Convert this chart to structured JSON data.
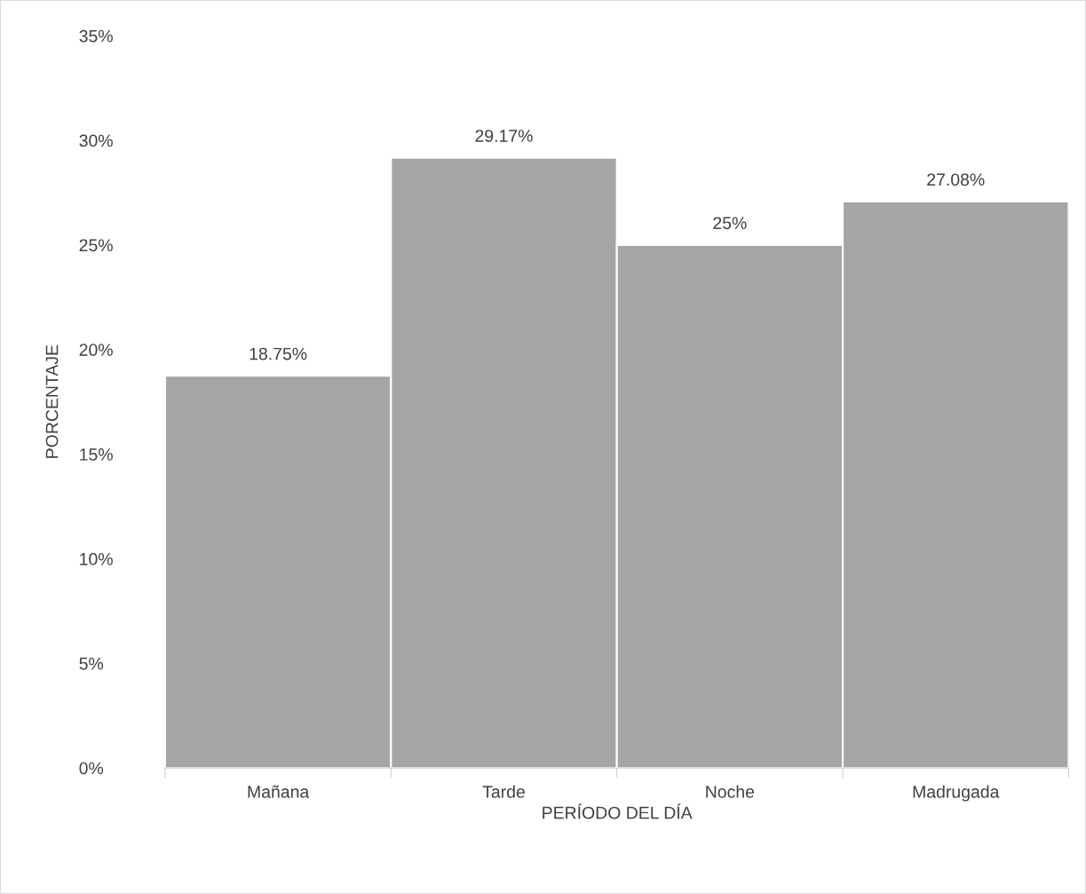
{
  "chart_data": {
    "type": "bar",
    "xlabel": "PERÍODO DEL DÍA",
    "ylabel": "PORCENTAJE",
    "categories": [
      "Mañana",
      "Tarde",
      "Noche",
      "Madrugada"
    ],
    "values": [
      18.75,
      29.17,
      25,
      27.08
    ],
    "value_labels": [
      "18.75%",
      "29.17%",
      "25%",
      "27.08%"
    ],
    "color": "#a5a5a5",
    "ylim": [
      0,
      35
    ],
    "yticks": [
      {
        "value": 0,
        "label": "0%"
      },
      {
        "value": 5,
        "label": "5%"
      },
      {
        "value": 10,
        "label": "10%"
      },
      {
        "value": 15,
        "label": "15%"
      },
      {
        "value": 20,
        "label": "20%"
      },
      {
        "value": 25,
        "label": "25%"
      },
      {
        "value": 30,
        "label": "30%"
      },
      {
        "value": 35,
        "label": "35%"
      }
    ],
    "grid": false,
    "legend": false
  }
}
